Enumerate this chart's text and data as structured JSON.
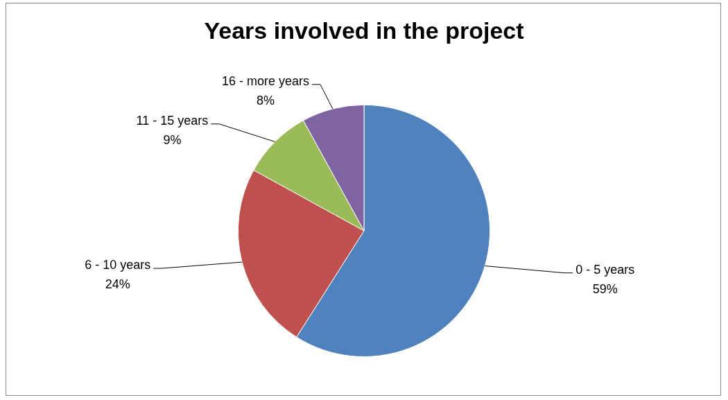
{
  "chart_data": {
    "type": "pie",
    "title": "Years involved in the project",
    "categories": [
      "0 - 5 years",
      "6 - 10 years",
      "11 - 15 years",
      "16 - more years"
    ],
    "values": [
      59,
      24,
      9,
      8
    ],
    "value_labels": [
      "59%",
      "24%",
      "9%",
      "8%"
    ],
    "colors": [
      "#4f81bd",
      "#c0504d",
      "#9bbb59",
      "#8064a2"
    ],
    "legend": false
  }
}
